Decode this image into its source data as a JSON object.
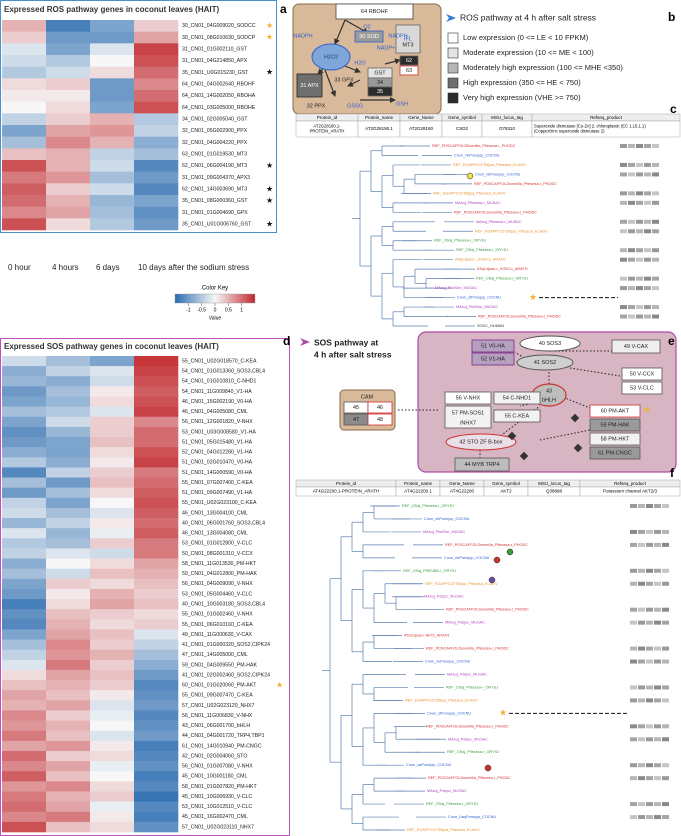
{
  "panel_labels": [
    "a",
    "b",
    "c",
    "d",
    "e",
    "f"
  ],
  "heatmap_columns": [
    "0 hour",
    "4 hours",
    "6 days",
    "10 days after the sodium stress"
  ],
  "color_key": {
    "title": "Color Key",
    "label": "Value",
    "ticks": [
      -1,
      -0.5,
      0,
      0.5,
      1
    ],
    "lim": [
      -1.5,
      1.5
    ],
    "low_color": "#2b6cb0",
    "mid_color": "#f7f7f7",
    "high_color": "#c1272d"
  },
  "heatmap_ros": {
    "title": "Expressed ROS pathway genes in coconut leaves (HAIT)",
    "rows": [
      "30_CN01_04G009020_SODCC",
      "30_CN01_08G010630_SODCP",
      "31_CN01_01G002110_GST",
      "31_CN01_04G214850_APX",
      "35_CN01_U0G015230_GST",
      "64_CN01_04G002640_RBOHF",
      "64_CN01_14G002050_RBOHA",
      "64_CN01_03G005000_RBOHE",
      "34_CN01_02G005040_GST",
      "32_CN01_05G002900_PPX",
      "32_CN01_04G004220_PPX",
      "63_CN01_01G019530_MT3",
      "62_CN01_06G004190_MT3",
      "31_CN01_09G004370_APX3",
      "62_CN01_14G003690_MT3",
      "35_CN01_08G000360_GST",
      "31_CN01_01G004690_GPX",
      "35_CN01_U01G006760_GST"
    ],
    "stars": [
      "#f2b134",
      "#f2b134",
      null,
      null,
      "#111111",
      null,
      null,
      null,
      null,
      null,
      null,
      null,
      "#111111",
      null,
      "#111111",
      "#111111",
      null,
      "#111111"
    ],
    "values": [
      [
        0.5,
        -1.3,
        -0.9,
        0.3
      ],
      [
        0.3,
        -1.0,
        -1.0,
        0.6
      ],
      [
        -0.2,
        -0.9,
        -0.2,
        1.3
      ],
      [
        -0.3,
        -0.5,
        0.0,
        1.2
      ],
      [
        -0.5,
        -0.3,
        0.2,
        1.0
      ],
      [
        0.2,
        0.3,
        -1.0,
        0.8
      ],
      [
        0.1,
        0.1,
        -1.0,
        1.0
      ],
      [
        0.0,
        0.2,
        -0.9,
        1.2
      ],
      [
        -0.4,
        0.3,
        0.5,
        -0.5
      ],
      [
        -0.9,
        0.6,
        0.7,
        -0.4
      ],
      [
        -0.6,
        0.8,
        0.5,
        -0.8
      ],
      [
        0.4,
        0.5,
        -0.4,
        -0.6
      ],
      [
        1.2,
        0.5,
        -0.3,
        -1.2
      ],
      [
        0.9,
        0.7,
        -0.6,
        -1.0
      ],
      [
        1.1,
        0.3,
        -0.3,
        -1.2
      ],
      [
        1.0,
        0.5,
        -0.7,
        -0.9
      ],
      [
        0.8,
        0.6,
        -0.6,
        -1.1
      ],
      [
        1.2,
        0.2,
        -0.5,
        -1.0
      ]
    ]
  },
  "heatmap_sos": {
    "title": "Expressed SOS pathway genes in coconut leaves (HAIT)",
    "rows": [
      "55_CN01_U02G018570_C-KEA",
      "54_CN01_01G013360_SOS3,CBL4",
      "54_CN01_01G010810_C-NHD1",
      "54_CN01_11G009840_V1-HA",
      "46_CN01_15G002190_V0-HA",
      "46_CN01_04G005080_CML",
      "56_CN01_12G001820_V-NHX",
      "53_CN01_U03G008580_V1-HA",
      "51_CN01_05G015480_V1-HA",
      "52_CN01_04G012280_V1-HA",
      "51_CN01_02G010470_V0-HA",
      "51_CN01_14G000590_V0-HA",
      "55_CN01_07G007400_C-KEA",
      "51_CN01_09G007490_V1-HA",
      "55_CN01_U02G023100_C-KEA",
      "46_CN01_13G004100_CML",
      "40_CN01_06G001760_SOS3,CBL4",
      "46_CN01_13G004080_CML",
      "53_CN01_01G012800_V-CLC",
      "50_CN01_08G001310_V-CCX",
      "58_CN01_11G013530_PM-HKT",
      "59_CN01_04G012800_PM-HAK",
      "56_CN01_04G009090_V-NHX",
      "53_CN01_05G004460_V-CLC",
      "40_CN01_10G003180_SOS3,CBL4",
      "55_CN01_01G002460_V-NHX",
      "55_CN01_06G010160_C-KEA",
      "49_CN01_11G000630_V-CAX",
      "41_CN01_01G000320_SOS2,CIPK24",
      "47_CN01_14G005000_CML",
      "59_CN01_04G009550_PM-HAK",
      "41_CN01_02G002460_SOS2,CIPK24",
      "60_CN01_01G020060_PM-AKT",
      "55_CN01_09G007470_C-KEA",
      "57_CN01_U02G023120_NHX7",
      "56_CN01_11G006830_V-NHX",
      "43_CN01_06G001700_bHLH",
      "44_CN01_04G001720_TRP4,TBP1",
      "61_CN01_14G010940_PM-CNGC",
      "42_CN01_02G004060_STO",
      "56_CN01_01G007080_V-NHX",
      "45_CN01_10G001180_CML",
      "58_CN01_01G007820_PM-HKT",
      "45_CN01_10G006930_V-CLC",
      "53_CN01_10G012510_V-CLC",
      "45_CN01_16G002470_CML",
      "57_CN01_U02G023110_NHX7"
    ],
    "stars": [
      null,
      null,
      null,
      null,
      null,
      null,
      null,
      null,
      null,
      null,
      null,
      null,
      null,
      null,
      null,
      null,
      null,
      null,
      null,
      null,
      null,
      null,
      null,
      null,
      null,
      null,
      null,
      null,
      null,
      null,
      null,
      null,
      "#f2b134",
      null,
      null,
      null,
      null,
      null,
      null,
      null,
      null,
      null,
      null,
      null,
      null,
      null,
      null
    ],
    "values": [
      [
        -0.3,
        -0.6,
        -0.9,
        1.4
      ],
      [
        -0.8,
        -0.4,
        -0.2,
        1.3
      ],
      [
        -0.7,
        -0.8,
        -0.3,
        1.2
      ],
      [
        -1.0,
        -0.6,
        0.1,
        1.1
      ],
      [
        -0.9,
        -0.7,
        0.2,
        1.2
      ],
      [
        -0.6,
        -0.5,
        -0.2,
        1.3
      ],
      [
        -0.9,
        -0.3,
        0.3,
        0.8
      ],
      [
        -1.1,
        -0.7,
        0.3,
        1.0
      ],
      [
        -1.0,
        -0.9,
        0.4,
        1.0
      ],
      [
        -0.8,
        -0.9,
        0.2,
        1.2
      ],
      [
        -0.5,
        -0.8,
        0.1,
        1.3
      ],
      [
        -1.2,
        -0.4,
        0.3,
        0.9
      ],
      [
        -0.6,
        -1.0,
        0.4,
        1.0
      ],
      [
        -1.0,
        -0.6,
        0.2,
        1.1
      ],
      [
        -0.4,
        -0.9,
        0.0,
        1.2
      ],
      [
        -0.3,
        -0.6,
        -0.2,
        1.1
      ],
      [
        -0.7,
        -0.4,
        0.1,
        1.0
      ],
      [
        -0.2,
        -0.7,
        -0.1,
        1.1
      ],
      [
        -0.5,
        -0.6,
        0.3,
        0.9
      ],
      [
        -0.4,
        -0.2,
        -0.3,
        0.9
      ],
      [
        -0.8,
        0.0,
        0.2,
        0.6
      ],
      [
        -0.6,
        -0.3,
        0.4,
        0.5
      ],
      [
        -0.9,
        0.3,
        0.2,
        0.4
      ],
      [
        -1.0,
        0.1,
        0.5,
        0.3
      ],
      [
        -1.3,
        0.2,
        0.6,
        0.4
      ],
      [
        -1.1,
        0.4,
        0.3,
        0.2
      ],
      [
        -1.2,
        0.5,
        0.2,
        0.3
      ],
      [
        -0.9,
        0.6,
        0.4,
        -0.2
      ],
      [
        -0.6,
        0.8,
        0.3,
        -0.4
      ],
      [
        -0.4,
        0.7,
        0.5,
        -0.6
      ],
      [
        -0.2,
        0.9,
        0.3,
        -0.8
      ],
      [
        0.2,
        0.6,
        0.4,
        -1.0
      ],
      [
        0.4,
        0.5,
        0.3,
        -1.2
      ],
      [
        0.6,
        0.4,
        0.1,
        -1.1
      ],
      [
        0.5,
        0.6,
        -0.2,
        -1.0
      ],
      [
        0.8,
        0.3,
        -0.1,
        -1.2
      ],
      [
        0.7,
        0.5,
        0.0,
        -1.1
      ],
      [
        0.9,
        0.4,
        -0.2,
        -1.0
      ],
      [
        0.6,
        0.7,
        0.1,
        -1.3
      ],
      [
        1.0,
        0.3,
        0.2,
        -1.2
      ],
      [
        0.8,
        0.6,
        -0.1,
        -1.1
      ],
      [
        1.1,
        0.4,
        0.0,
        -1.3
      ],
      [
        0.7,
        0.8,
        0.2,
        -1.2
      ],
      [
        0.9,
        0.5,
        0.3,
        -1.4
      ],
      [
        1.0,
        0.6,
        -0.1,
        -1.2
      ],
      [
        0.8,
        0.9,
        0.1,
        -1.3
      ],
      [
        1.2,
        0.4,
        0.2,
        -1.1
      ]
    ]
  },
  "ros_pathway": {
    "nodes": [
      "64 RBOHF",
      "NADPH",
      "H2O2",
      "O2",
      "30 SOD",
      "NADP+",
      "IFL",
      "MT3",
      "62",
      "63",
      "H2O",
      "GST",
      "34",
      "35",
      "31 APX",
      "33 GPX",
      "32 PPX",
      "GSSG",
      "GSH",
      "NADPH"
    ],
    "legend_title": "ROS pathway at 4 h after salt stress",
    "legend": [
      {
        "label": "Low expression (0 <= LE < 10 FPKM)",
        "color": "#ffffff"
      },
      {
        "label": "Moderate expression (10 <= ME < 100)",
        "color": "#e4e4e4"
      },
      {
        "label": "Moderately high expression (100 <= MHE <350)",
        "color": "#b5b5b5"
      },
      {
        "label": "High expression (350 <= HE < 750)",
        "color": "#6f6f6f"
      },
      {
        "label": "Very high expression (VHE >= 750)",
        "color": "#2b2b2b"
      }
    ]
  },
  "table_c": {
    "headers": [
      "Protein_id",
      "Protein_name",
      "Gene_Name",
      "Gene_symbol",
      "MSU_locus_tag",
      "Refseq_product"
    ],
    "row": [
      "AT2G28190.1-PROTEIN_ARATH",
      "AT2G28190.1",
      "AT2G28190",
      "CSD2",
      "O78310",
      "Superoxide dismutase [Cu-Zn] 2, chloroplastic (EC 1.15.1.1) (Copper/zinc superoxide dismutase 2)"
    ]
  },
  "tree_c": {
    "leaves": [
      {
        "name": "REF_PDSCAFFOLD5oenilla_Pfiesesa-r_PHODC",
        "color": "#d0312d"
      },
      {
        "name": "Cnon_nbPonejop_COCNU",
        "color": "#2f5fd0"
      },
      {
        "name": "REF_EGAPPCCFS5ljoa_Pfiesesa_ELAGV",
        "color": "#e8902a"
      },
      {
        "name": "Cnon_nbPonejop_COCNU",
        "color": "#2f5fd0"
      },
      {
        "name": "REF_PDSCAFFOLDsvenilla_Pfiesesa-r_PHODC",
        "color": "#d0312d"
      },
      {
        "name": "REF_EGAPPCCFS5ljoa_Pfiesesa_ELAGV",
        "color": "#e8902a"
      },
      {
        "name": "MAsuj_Pfiesesa-r_MUSAC",
        "color": "#b23fbf"
      },
      {
        "name": "REF_PDSCAFFOLDsvenilla_Pfiesesa-r_PHODC",
        "color": "#d0312d"
      },
      {
        "name": "MAsuj_Pfiesesa-r_MUSAC",
        "color": "#b23fbf"
      },
      {
        "name": "REF_EGAPPCCFS5ljoa_Pfiesesa_ELAGV",
        "color": "#e8902a"
      },
      {
        "name": "REF_OSaj_Pfiesesa-r_ORYSJ",
        "color": "#3c9a3c"
      },
      {
        "name": "REF_OSaj_Pfiesesa-r_ORYSJ",
        "color": "#3c9a3c"
      },
      {
        "name": "ATsjCsjsas-r_SODCc_ARATH",
        "color": "#e8902a"
      },
      {
        "name": "ATsjCsjsas-r_SODCc_ARATH",
        "color": "#d0312d"
      },
      {
        "name": "REF_OSaj_Pfiesesa-r_ORYSJ",
        "color": "#3c9a3c"
      },
      {
        "name": "MAsuj_PbdStor_MUSAC",
        "color": "#b23fbf"
      },
      {
        "name": "Cnon_stPonejop_COCNU",
        "color": "#2f5fd0"
      },
      {
        "name": "MAsuj_PbdStor_MUSAC",
        "color": "#b23fbf"
      },
      {
        "name": "REF_PDSCAFFOLDsvenilla_Pfiesesa-r_PHODC",
        "color": "#d0312d"
      },
      {
        "name": "SODC_HUMAN",
        "color": "#333333"
      }
    ]
  },
  "sos_pathway": {
    "title": [
      "SOS pathway at",
      "4 h after salt stress"
    ],
    "nodes": [
      "40 SOS3",
      "49 V-CAX",
      "51 V0-HA",
      "52 V1-HA",
      "41 SOS2",
      "50 V-CCX",
      "53 V-CLC",
      "43",
      "bHLH",
      "56 V-NHX",
      "54 C-NHD1",
      "57 PM-SOS1",
      "/NHX7",
      "55 C-KEA",
      "60 PM-AKT",
      "59 PM-HAK",
      "58 PM-HKT",
      "61 PM-CNGC",
      "42 STO ZF B-box",
      "44 MYB TRP4",
      "CAM",
      "45",
      "46",
      "47",
      "48"
    ]
  },
  "table_f": {
    "headers": [
      "Protein_id",
      "Protein_name",
      "Gene_Name",
      "Gene_symbol",
      "MSU_locus_tag",
      "Refseq_product"
    ],
    "row": [
      "AT4G22200.1-PROTEIN_ARATH",
      "AT4G22200.1",
      "AT4G22200",
      "AKT2",
      "Q38898",
      "Potassium channel AKT2/3"
    ]
  },
  "tree_f": {
    "leaves": [
      {
        "name": "REF_OSaj_Pfiesesa-r_ORYSJ",
        "color": "#3c9a3c"
      },
      {
        "name": "Cnon_nbPonejop_COCNU",
        "color": "#2f5fd0"
      },
      {
        "name": "MAsuj_PbdStor_MUSAC",
        "color": "#b23fbf"
      },
      {
        "name": "REF_PDSCAFFOLDsvenilla_Pfiesesa-r_PHODC",
        "color": "#d0312d"
      },
      {
        "name": "Cnon_nbPonejop_COCNU",
        "color": "#2f5fd0"
      },
      {
        "name": "REF_OSaj_PfiSSIBB-r_ORYSJ",
        "color": "#3c9a3c"
      },
      {
        "name": "REF_EGAPPCCFS5ljoa_Pfiesesa_ELAGV",
        "color": "#e8902a"
      },
      {
        "name": "MAsuj_Pdsjoc_MUSAC",
        "color": "#b23fbf"
      },
      {
        "name": "REF_PDSCAFFOLDsvenilla_Pfiesesa-r_PHODC",
        "color": "#d0312d"
      },
      {
        "name": "MAsuj_Pdsjoc_MUSAC",
        "color": "#b23fbf"
      },
      {
        "name": "ATuCsjsas-r-AKTs_ARATH",
        "color": "#d0312d"
      },
      {
        "name": "REF_PDSCAFFOLDsvenilla_Pfiesesa-r_PHODC",
        "color": "#d0312d"
      },
      {
        "name": "Cnon_nuPonejop_COCNU",
        "color": "#2f5fd0"
      },
      {
        "name": "MAsuj_Pdsjoc_MUSAC",
        "color": "#b23fbf"
      },
      {
        "name": "REF_OSaj_Pfiesesa-r_ORYSJ",
        "color": "#3c9a3c"
      },
      {
        "name": "REF_EGAPPCCFS5ljoa_Pfiesesa_ELAGV",
        "color": "#e8902a"
      },
      {
        "name": "Cnon_stPonejop_COCNU",
        "color": "#2f5fd0"
      },
      {
        "name": "REF_PDSCAFFOLDsvenilla_Pfiesesa-r_PHODC",
        "color": "#d0312d"
      },
      {
        "name": "MAsuj_Pdsjoc_MUSAC",
        "color": "#b23fbf"
      },
      {
        "name": "REF_OSaj_Pfiesesa-r_ORYSJ",
        "color": "#3c9a3c"
      },
      {
        "name": "Cnon_uaPonejop_COCNU",
        "color": "#2f5fd0"
      },
      {
        "name": "REF_PDSCAFFOLDsvenilla_Pfiesesa-r_PHODC",
        "color": "#d0312d"
      },
      {
        "name": "MAsuj_Pdsjoc_MUSAC",
        "color": "#b23fbf"
      },
      {
        "name": "REF_OSaj_Pfiesesa-r_ORYSJ",
        "color": "#3c9a3c"
      },
      {
        "name": "Cnon_UaqPonejop_COCNU",
        "color": "#2f5fd0"
      },
      {
        "name": "REF_EGAPPCCFS5ljoa_Pfiesesa_ELAGV",
        "color": "#e8902a"
      }
    ]
  }
}
